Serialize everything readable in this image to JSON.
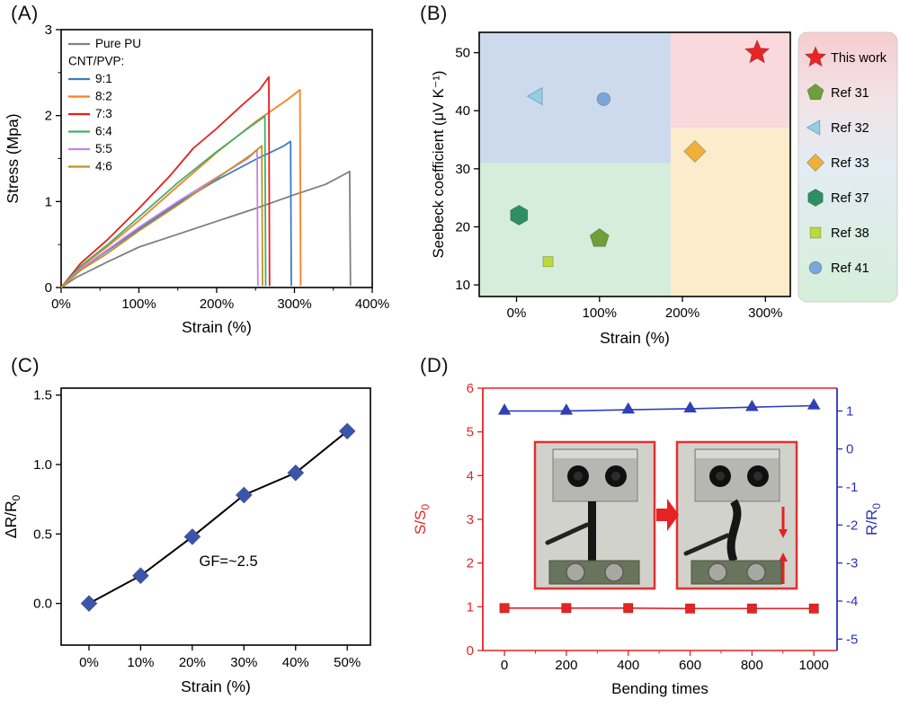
{
  "panels": [
    {
      "label": "(A)"
    },
    {
      "label": "(B)"
    },
    {
      "label": "(C)"
    },
    {
      "label": "(D)"
    }
  ],
  "chart_data": [
    {
      "type": "line",
      "xlabel": "Strain (%)",
      "ylabel": "Stress (Mpa)",
      "xlim": [
        0,
        400
      ],
      "ylim": [
        0,
        3
      ],
      "xticks": [
        {
          "v": 0,
          "t": "0%"
        },
        {
          "v": 100,
          "t": "100%"
        },
        {
          "v": 200,
          "t": "200%"
        },
        {
          "v": 300,
          "t": "300%"
        },
        {
          "v": 400,
          "t": "400%"
        }
      ],
      "xminor": [
        50,
        150,
        250,
        350
      ],
      "yticks": [
        {
          "v": 0,
          "t": "0"
        },
        {
          "v": 1,
          "t": "1"
        },
        {
          "v": 2,
          "t": "2"
        },
        {
          "v": 3,
          "t": "3"
        }
      ],
      "yminor": [
        0.5,
        1.5,
        2.5
      ],
      "legend": [
        {
          "label": "Pure PU",
          "color": "#7f7f7f",
          "line": true
        },
        {
          "label": "CNT/PVP:",
          "color": "",
          "line": false
        },
        {
          "label": "9:1",
          "color": "#3d7dbf",
          "line": true
        },
        {
          "label": "8:2",
          "color": "#ff7f1e",
          "line": true
        },
        {
          "label": "7:3",
          "color": "#ea1c1c",
          "line": true
        },
        {
          "label": "6:4",
          "color": "#43b06e",
          "line": true
        },
        {
          "label": "5:5",
          "color": "#c583e2",
          "line": true
        },
        {
          "label": "4:6",
          "color": "#c29122",
          "line": true
        }
      ],
      "series": [
        {
          "name": "Pure PU",
          "color": "#7f7f7f",
          "width": 1.8,
          "points": [
            [
              0,
              0
            ],
            [
              20,
              0.12
            ],
            [
              60,
              0.3
            ],
            [
              100,
              0.47
            ],
            [
              150,
              0.62
            ],
            [
              200,
              0.77
            ],
            [
              250,
              0.92
            ],
            [
              300,
              1.08
            ],
            [
              340,
              1.2
            ],
            [
              365,
              1.32
            ],
            [
              371,
              1.35
            ],
            [
              372,
              0.02
            ]
          ]
        },
        {
          "name": "9:1",
          "color": "#3d7dbf",
          "width": 1.8,
          "points": [
            [
              0,
              0
            ],
            [
              25,
              0.22
            ],
            [
              60,
              0.43
            ],
            [
              100,
              0.68
            ],
            [
              150,
              0.98
            ],
            [
              200,
              1.25
            ],
            [
              250,
              1.49
            ],
            [
              285,
              1.64
            ],
            [
              295,
              1.7
            ],
            [
              296,
              0.02
            ]
          ]
        },
        {
          "name": "8:2",
          "color": "#ff7f1e",
          "width": 1.8,
          "points": [
            [
              0,
              0
            ],
            [
              25,
              0.24
            ],
            [
              60,
              0.48
            ],
            [
              100,
              0.78
            ],
            [
              150,
              1.18
            ],
            [
              200,
              1.57
            ],
            [
              250,
              1.93
            ],
            [
              290,
              2.18
            ],
            [
              307,
              2.3
            ],
            [
              308,
              0.02
            ]
          ]
        },
        {
          "name": "7:3",
          "color": "#ea1c1c",
          "width": 1.8,
          "points": [
            [
              0,
              0
            ],
            [
              25,
              0.28
            ],
            [
              60,
              0.56
            ],
            [
              100,
              0.92
            ],
            [
              140,
              1.3
            ],
            [
              170,
              1.62
            ],
            [
              200,
              1.85
            ],
            [
              230,
              2.1
            ],
            [
              255,
              2.3
            ],
            [
              267,
              2.45
            ],
            [
              268,
              0.02
            ]
          ]
        },
        {
          "name": "6:4",
          "color": "#43b06e",
          "width": 1.8,
          "points": [
            [
              0,
              0
            ],
            [
              25,
              0.25
            ],
            [
              60,
              0.5
            ],
            [
              100,
              0.82
            ],
            [
              150,
              1.22
            ],
            [
              200,
              1.58
            ],
            [
              240,
              1.85
            ],
            [
              260,
              1.98
            ],
            [
              262,
              2.0
            ],
            [
              263,
              0.02
            ]
          ]
        },
        {
          "name": "5:5",
          "color": "#c583e2",
          "width": 1.8,
          "points": [
            [
              0,
              0
            ],
            [
              25,
              0.22
            ],
            [
              60,
              0.44
            ],
            [
              100,
              0.7
            ],
            [
              150,
              1.0
            ],
            [
              200,
              1.28
            ],
            [
              240,
              1.5
            ],
            [
              252,
              1.6
            ],
            [
              253,
              0.02
            ]
          ]
        },
        {
          "name": "4:6",
          "color": "#c29122",
          "width": 1.8,
          "points": [
            [
              0,
              0
            ],
            [
              25,
              0.2
            ],
            [
              60,
              0.4
            ],
            [
              100,
              0.66
            ],
            [
              150,
              0.96
            ],
            [
              200,
              1.27
            ],
            [
              245,
              1.55
            ],
            [
              258,
              1.65
            ],
            [
              259,
              0.02
            ]
          ]
        }
      ]
    },
    {
      "type": "scatter",
      "xlabel": "Strain (%)",
      "ylabel": "Seebeck coefficient (μV K⁻¹)",
      "xlim": [
        -45,
        330
      ],
      "ylim": [
        8,
        53.5
      ],
      "xticks": [
        {
          "v": 0,
          "t": "0%"
        },
        {
          "v": 100,
          "t": "100%"
        },
        {
          "v": 200,
          "t": "200%"
        },
        {
          "v": 300,
          "t": "300%"
        }
      ],
      "yticks": [
        {
          "v": 10,
          "t": "10"
        },
        {
          "v": 20,
          "t": "20"
        },
        {
          "v": 30,
          "t": "30"
        },
        {
          "v": 40,
          "t": "40"
        },
        {
          "v": 50,
          "t": "50"
        }
      ],
      "quadrants": {
        "x_split": 186,
        "y_split_left": 31,
        "y_split_right": 37,
        "top_left_color": "#cdd9ec",
        "top_right_color": "#fad9dd",
        "bottom_left_color": "#d7eddc",
        "bottom_right_color": "#fdeccb"
      },
      "points": [
        {
          "name": "This work",
          "marker": "star",
          "color": "#e82525",
          "x": 290,
          "y": 50,
          "size": 14
        },
        {
          "name": "Ref 31",
          "marker": "pentagon",
          "color": "#6f9f3a",
          "x": 100,
          "y": 18,
          "size": 11
        },
        {
          "name": "Ref 32",
          "marker": "triangle-left",
          "color": "#8fd0e8",
          "x": 25,
          "y": 42.5,
          "size": 11
        },
        {
          "name": "Ref 33",
          "marker": "diamond",
          "color": "#f0b03c",
          "x": 215,
          "y": 33,
          "size": 12
        },
        {
          "name": "Ref 37",
          "marker": "hexagon",
          "color": "#2f8e63",
          "x": 3,
          "y": 22,
          "size": 11
        },
        {
          "name": "Ref 38",
          "marker": "square",
          "color": "#bdd93a",
          "x": 38,
          "y": 14,
          "size": 9
        },
        {
          "name": "Ref 41",
          "marker": "circle",
          "color": "#7ba7d7",
          "x": 105,
          "y": 42,
          "size": 10
        }
      ],
      "legend": [
        {
          "label": "This work",
          "marker": "star",
          "color": "#e82525"
        },
        {
          "label": "Ref 31",
          "marker": "pentagon",
          "color": "#6f9f3a"
        },
        {
          "label": "Ref 32",
          "marker": "triangle-left",
          "color": "#8fd0e8"
        },
        {
          "label": "Ref 33",
          "marker": "diamond",
          "color": "#f0b03c"
        },
        {
          "label": "Ref 37",
          "marker": "hexagon",
          "color": "#2f8e63"
        },
        {
          "label": "Ref 38",
          "marker": "square",
          "color": "#bdd93a"
        },
        {
          "label": "Ref 41",
          "marker": "circle",
          "color": "#7ba7d7"
        }
      ],
      "legend_gradient": [
        "#f6ccd0",
        "#f2e3e6",
        "#e3ecf3",
        "#dcede6",
        "#d5eeda"
      ]
    },
    {
      "type": "line",
      "xlabel": "Strain (%)",
      "ylabel_main": "ΔR/R",
      "ylabel_sub": "0",
      "categories": [
        "0%",
        "10%",
        "20%",
        "30%",
        "40%",
        "50%"
      ],
      "values": [
        0.0,
        0.2,
        0.48,
        0.78,
        0.94,
        1.24
      ],
      "ylim": [
        -0.3,
        1.55
      ],
      "yticks": [
        {
          "v": 0,
          "t": "0.0"
        },
        {
          "v": 0.5,
          "t": "0.5"
        },
        {
          "v": 1.0,
          "t": "1.0"
        },
        {
          "v": 1.5,
          "t": "1.5"
        }
      ],
      "annotation": "GF=~2.5",
      "annotation_x_index": 2.7,
      "annotation_y": 0.27,
      "marker_color": "#3b55ad",
      "line_color": "#000000"
    },
    {
      "type": "line-dual-axis",
      "xlabel": "Bending times",
      "ylabel_left_main": "S/S",
      "ylabel_left_sub": "0",
      "ylabel_right_main": "R/R",
      "ylabel_right_sub": "0",
      "x": [
        0,
        200,
        400,
        600,
        800,
        1000
      ],
      "xlim": [
        -70,
        1075
      ],
      "xticks": [
        {
          "v": 0,
          "t": "0"
        },
        {
          "v": 200,
          "t": "200"
        },
        {
          "v": 400,
          "t": "400"
        },
        {
          "v": 600,
          "t": "600"
        },
        {
          "v": 800,
          "t": "800"
        },
        {
          "v": 1000,
          "t": "1000"
        }
      ],
      "xminor": [
        100,
        300,
        500,
        700,
        900
      ],
      "ylim_left": [
        0,
        6
      ],
      "yticks_left": [
        {
          "v": 0,
          "t": "0"
        },
        {
          "v": 1,
          "t": "1"
        },
        {
          "v": 2,
          "t": "2"
        },
        {
          "v": 3,
          "t": "3"
        },
        {
          "v": 4,
          "t": "4"
        },
        {
          "v": 5,
          "t": "5"
        },
        {
          "v": 6,
          "t": "6"
        }
      ],
      "ylim_right": [
        -5.3,
        1.6
      ],
      "yticks_right": [
        {
          "v": 1,
          "t": "1"
        },
        {
          "v": 0,
          "t": "0"
        },
        {
          "v": -1,
          "t": "-1"
        },
        {
          "v": -2,
          "t": "-2"
        },
        {
          "v": -3,
          "t": "-3"
        },
        {
          "v": -4,
          "t": "-4"
        },
        {
          "v": -5,
          "t": "-5"
        }
      ],
      "series_left": {
        "name": "S/S0",
        "marker": "square",
        "color": "#e42525",
        "values": [
          0.97,
          0.97,
          0.97,
          0.96,
          0.96,
          0.96
        ]
      },
      "series_right": {
        "name": "R/R0",
        "marker": "triangle-up",
        "color": "#2f3fbf",
        "values": [
          1.0,
          1.0,
          1.03,
          1.06,
          1.1,
          1.14
        ]
      },
      "left_color": "#e42525",
      "right_color": "#2b35b8",
      "inset": {
        "border_color": "#e63030",
        "arrow_color": "#e62222"
      }
    }
  ]
}
